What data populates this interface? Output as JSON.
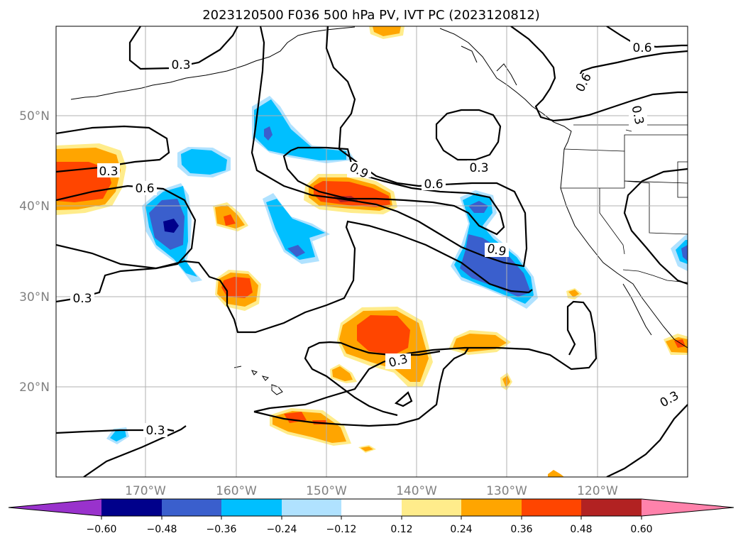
{
  "title": "2023120500 F036 500 hPa PV, IVT PC (2023120812)",
  "lat_labels": [
    "50°N",
    "40°N",
    "30°N",
    "20°N"
  ],
  "lon_labels": [
    "170°W",
    "160°W",
    "150°W",
    "140°W",
    "130°W",
    "120°W"
  ],
  "contour_labels": [
    "0.3",
    "0.3",
    "0.6",
    "0.9",
    "0.6",
    "0.3",
    "0.9",
    "0.6",
    "0.6",
    "0.3",
    "0.3",
    "0.3",
    "0.3",
    "0.3"
  ],
  "colorbar": {
    "tick_labels": [
      "−0.60",
      "−0.48",
      "−0.36",
      "−0.24",
      "−0.12",
      "0.12",
      "0.24",
      "0.36",
      "0.48",
      "0.60"
    ],
    "colors": [
      "#9932cc",
      "#00008b",
      "#3a5fcd",
      "#00bfff",
      "#b0e2ff",
      "#ffffff",
      "#ffec8b",
      "#ffa500",
      "#ff4500",
      "#b22222",
      "#ff82ab"
    ]
  },
  "fill_colors": {
    "light_blue": "#b0e2ff",
    "blue": "#00bfff",
    "royal_blue": "#3a5fcd",
    "navy": "#00008b",
    "light_yellow": "#ffec8b",
    "orange": "#ffa500",
    "red_orange": "#ff4500"
  }
}
